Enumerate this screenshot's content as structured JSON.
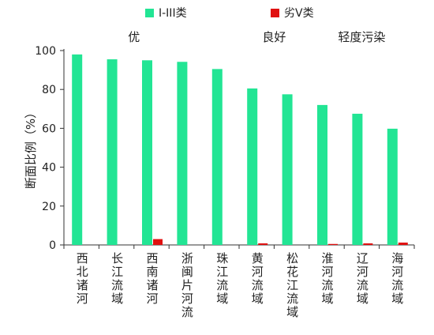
{
  "chart_data": {
    "type": "bar",
    "categories": [
      "西北诸河",
      "长江流域",
      "西南诸河",
      "浙闽片河流",
      "珠江流域",
      "黄河流域",
      "松花江流域",
      "淮河流域",
      "辽河流域",
      "海河流域"
    ],
    "series": [
      {
        "name": "I-III类",
        "color": "#22e594",
        "values": [
          98.0,
          95.5,
          95.0,
          94.2,
          90.5,
          80.5,
          77.5,
          72.0,
          67.5,
          59.8
        ]
      },
      {
        "name": "劣V类",
        "color": "#e01010",
        "values": [
          0,
          0,
          3.0,
          0,
          0,
          0.8,
          0,
          0.5,
          0.8,
          1.2
        ]
      }
    ],
    "ylabel": "断面比例（%）",
    "ylim": [
      0,
      100
    ],
    "yticks": [
      "0",
      "20",
      "40",
      "60",
      "80",
      "100"
    ],
    "group_labels": [
      {
        "text": "优",
        "category_index": 1.5
      },
      {
        "text": "良好",
        "category_index": 5.5
      },
      {
        "text": "轻度污染",
        "category_index": 8.0
      }
    ],
    "legend": "top",
    "grid": false
  }
}
